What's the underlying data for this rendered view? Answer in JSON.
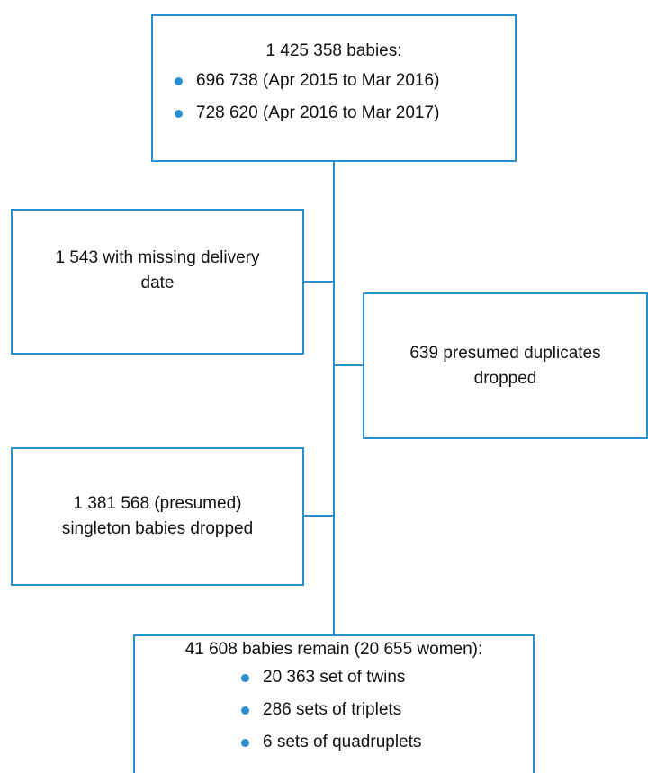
{
  "top": {
    "title": "1 425 358 babies:",
    "bullets": [
      "696 738 (Apr 2015 to Mar 2016)",
      "728 620 (Apr 2016 to Mar 2017)"
    ]
  },
  "missing_date": {
    "lines": [
      "1 543 with missing delivery",
      "date"
    ]
  },
  "duplicates": {
    "lines": [
      "639 presumed duplicates",
      "dropped"
    ]
  },
  "singletons": {
    "lines": [
      "1 381 568 (presumed)",
      "singleton babies dropped"
    ]
  },
  "remain": {
    "title": "41 608 babies remain (20 655 women):",
    "bullets": [
      "20 363 set of twins",
      "286 sets of triplets",
      "6 sets of quadruplets"
    ]
  }
}
